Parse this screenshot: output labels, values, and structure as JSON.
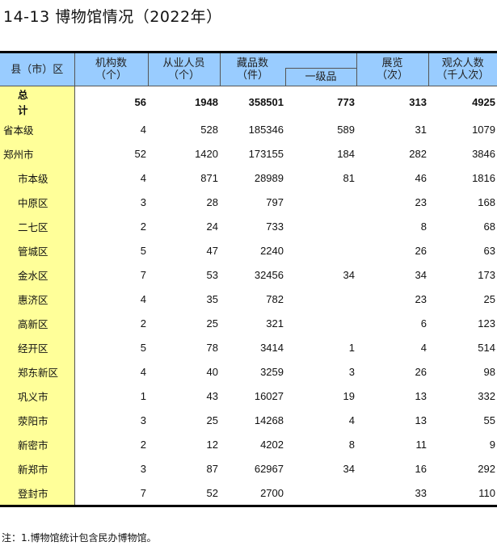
{
  "title": "14-13  博物馆情况（2022年）",
  "headers": {
    "region": "县（市）区",
    "institutions": "机构数\n（个）",
    "staff": "从业人员\n（个）",
    "collections": "藏品数\n（件）",
    "grade1": "一级品",
    "exhibitions": "展览\n（次）",
    "visitors": "观众人数\n（千人次）"
  },
  "rows": [
    {
      "name": "总　计",
      "v": [
        "56",
        "1948",
        "358501",
        "773",
        "313",
        "4925"
      ],
      "level": 0,
      "total": true
    },
    {
      "name": "省本级",
      "v": [
        "4",
        "528",
        "185346",
        "589",
        "31",
        "1079"
      ],
      "level": 0
    },
    {
      "name": "郑州市",
      "v": [
        "52",
        "1420",
        "173155",
        "184",
        "282",
        "3846"
      ],
      "level": 0
    },
    {
      "name": "市本级",
      "v": [
        "4",
        "871",
        "28989",
        "81",
        "46",
        "1816"
      ],
      "level": 1
    },
    {
      "name": "中原区",
      "v": [
        "3",
        "28",
        "797",
        "",
        "23",
        "168"
      ],
      "level": 1
    },
    {
      "name": "二七区",
      "v": [
        "2",
        "24",
        "733",
        "",
        "8",
        "68"
      ],
      "level": 1
    },
    {
      "name": "管城区",
      "v": [
        "5",
        "47",
        "2240",
        "",
        "26",
        "63"
      ],
      "level": 1
    },
    {
      "name": "金水区",
      "v": [
        "7",
        "53",
        "32456",
        "34",
        "34",
        "173"
      ],
      "level": 1
    },
    {
      "name": "惠济区",
      "v": [
        "4",
        "35",
        "782",
        "",
        "23",
        "25"
      ],
      "level": 1
    },
    {
      "name": "高新区",
      "v": [
        "2",
        "25",
        "321",
        "",
        "6",
        "123"
      ],
      "level": 1
    },
    {
      "name": "经开区",
      "v": [
        "5",
        "78",
        "3414",
        "1",
        "4",
        "514"
      ],
      "level": 1
    },
    {
      "name": "郑东新区",
      "v": [
        "4",
        "40",
        "3259",
        "3",
        "26",
        "98"
      ],
      "level": 1
    },
    {
      "name": "巩义市",
      "v": [
        "1",
        "43",
        "16027",
        "19",
        "13",
        "332"
      ],
      "level": 1
    },
    {
      "name": "荥阳市",
      "v": [
        "3",
        "25",
        "14268",
        "4",
        "13",
        "55"
      ],
      "level": 1
    },
    {
      "name": "新密市",
      "v": [
        "2",
        "12",
        "4202",
        "8",
        "11",
        "9"
      ],
      "level": 1
    },
    {
      "name": "新郑市",
      "v": [
        "3",
        "87",
        "62967",
        "34",
        "16",
        "292"
      ],
      "level": 1
    },
    {
      "name": "登封市",
      "v": [
        "7",
        "52",
        "2700",
        "",
        "33",
        "110"
      ],
      "level": 1
    }
  ],
  "note": "注：1.博物馆统计包含民办博物馆。",
  "colors": {
    "header_bg": "#99ccff",
    "region_bg": "#ffff99"
  }
}
